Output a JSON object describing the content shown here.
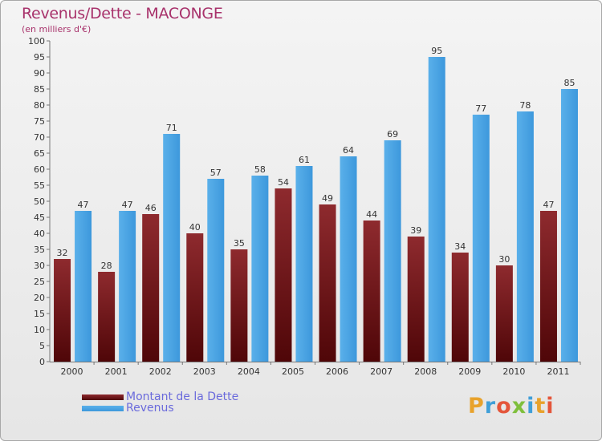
{
  "header": {
    "title": "Revenus/Dette - MACONGE",
    "subtitle": "(en milliers d'€)"
  },
  "legend": {
    "items": [
      {
        "label": "Montant de la Dette",
        "color": "#7a1518"
      },
      {
        "label": "Revenus",
        "color": "#3d9be0"
      }
    ]
  },
  "logo": {
    "text": "Proxiti",
    "parts": [
      "P",
      "r",
      "o",
      "x",
      "i",
      "t",
      "i"
    ]
  },
  "chart_data": {
    "type": "bar",
    "title": "Revenus/Dette - MACONGE",
    "ylabel": "(en milliers d'€)",
    "xlabel": "",
    "ylim": [
      0,
      100
    ],
    "ytick_step": 5,
    "grid": "none",
    "legend_position": "bottom-left",
    "categories": [
      "2000",
      "2001",
      "2002",
      "2003",
      "2004",
      "2005",
      "2006",
      "2007",
      "2008",
      "2009",
      "2010",
      "2011"
    ],
    "series": [
      {
        "name": "Montant de la Dette",
        "color": "#7a1518",
        "values": [
          32,
          28,
          46,
          40,
          35,
          54,
          49,
          44,
          39,
          34,
          30,
          47
        ]
      },
      {
        "name": "Revenus",
        "color": "#3d9be0",
        "values": [
          47,
          47,
          71,
          57,
          58,
          61,
          64,
          69,
          95,
          77,
          78,
          85
        ]
      }
    ]
  }
}
